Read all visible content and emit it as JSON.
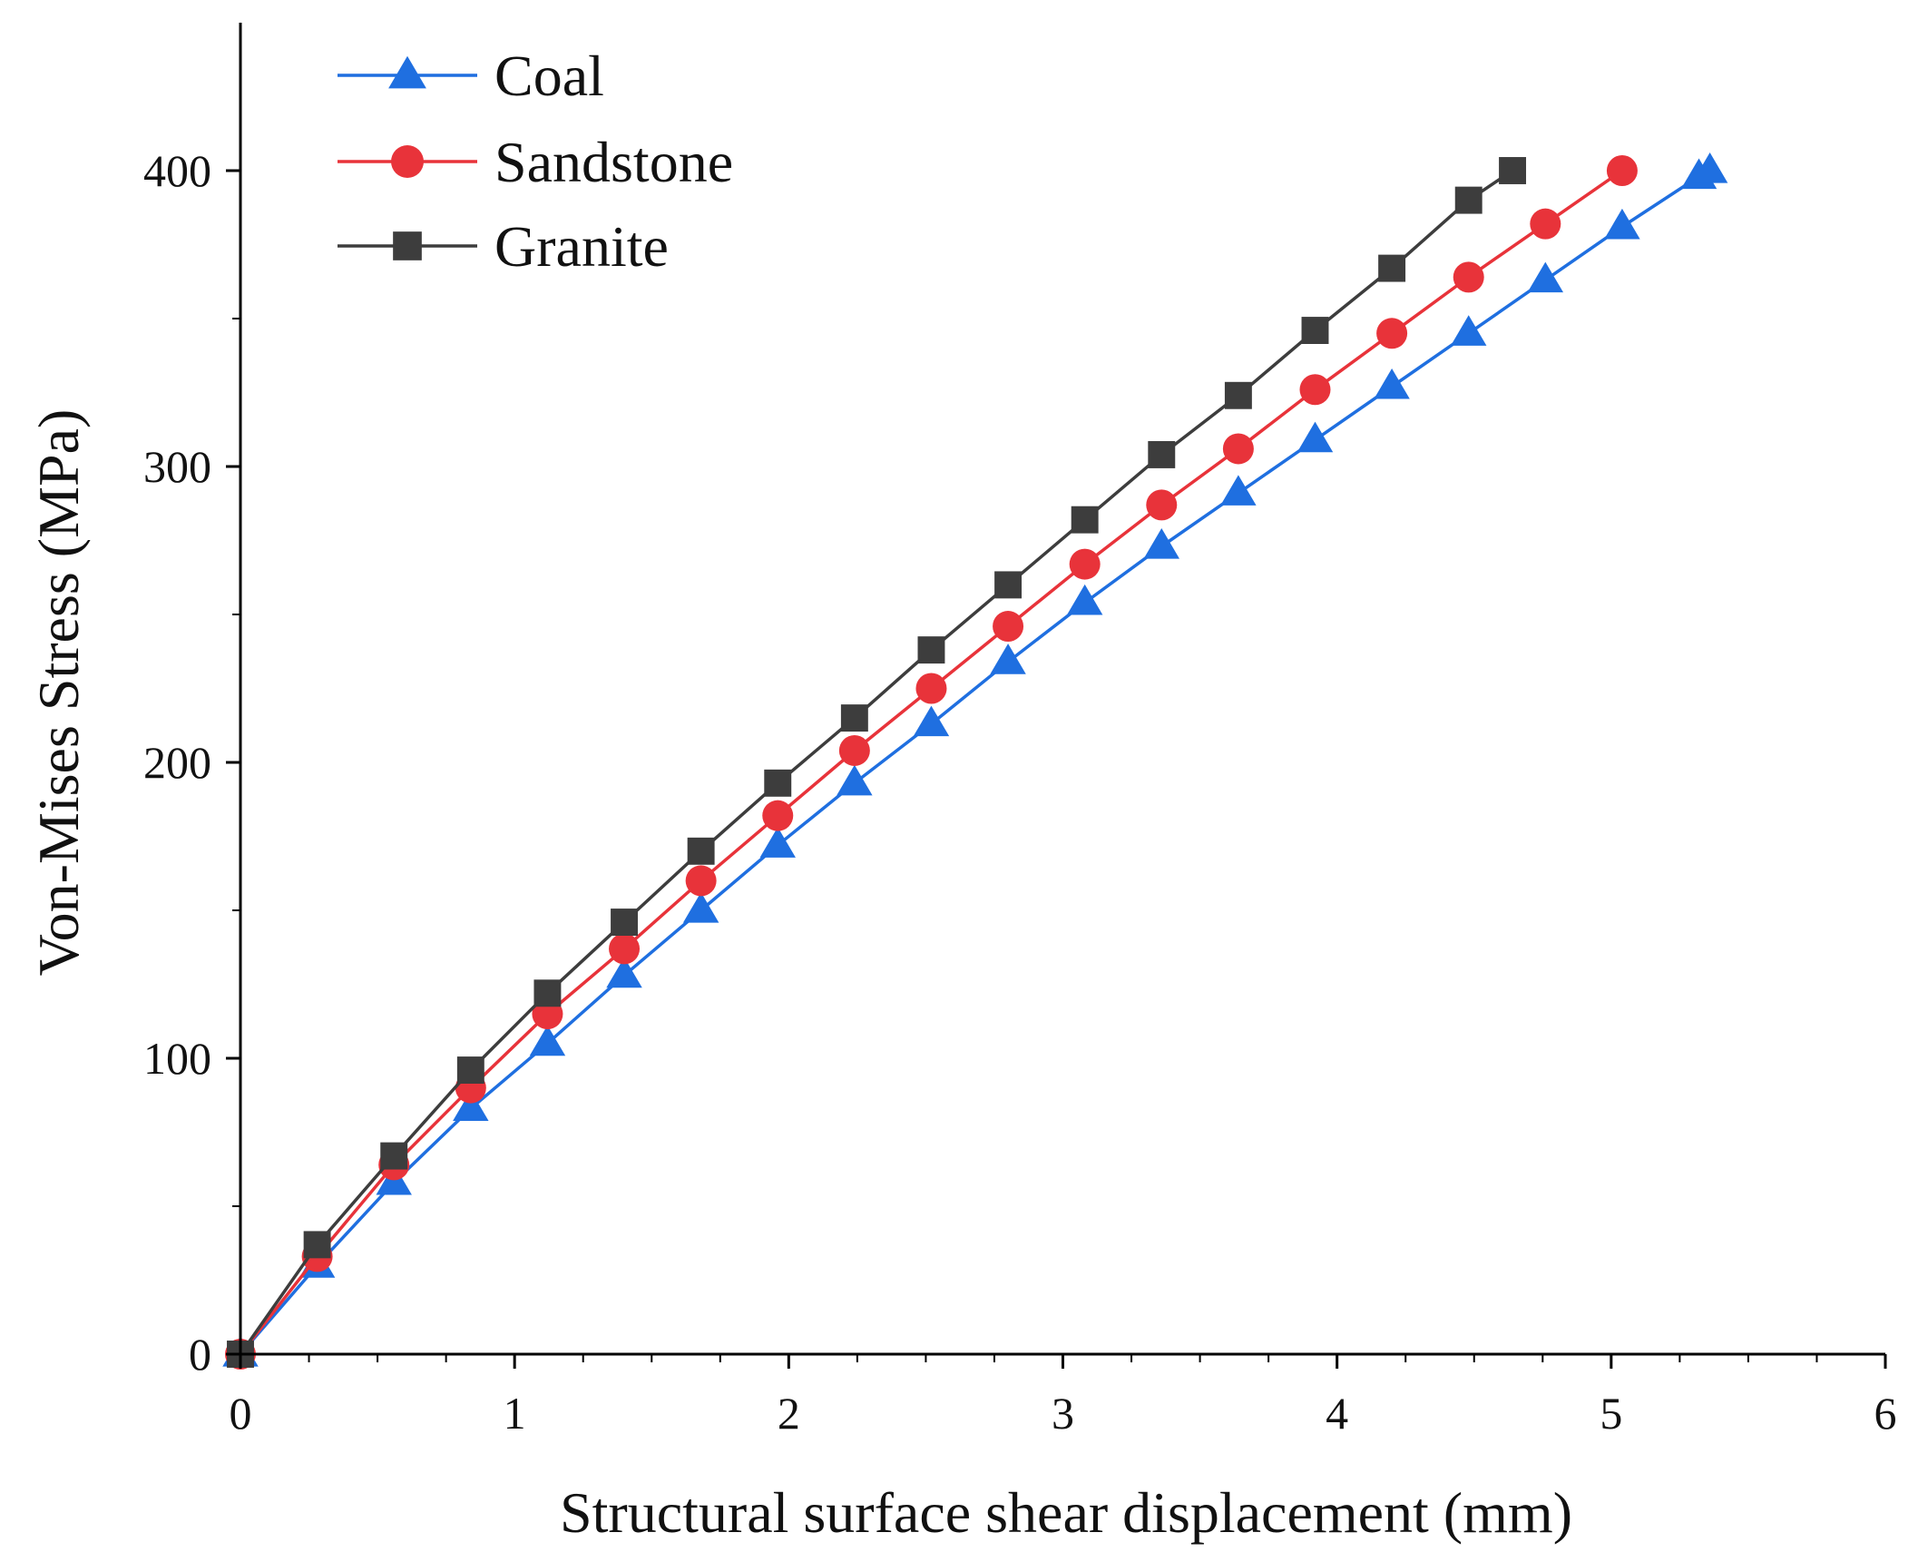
{
  "chart_data": {
    "type": "line",
    "title": "",
    "xlabel": "Structural surface shear displacement (mm)",
    "ylabel": "Von-Mises Stress (MPa)",
    "xlim": [
      0,
      6
    ],
    "ylim": [
      0,
      450
    ],
    "xticks": [
      0,
      1,
      2,
      3,
      4,
      5,
      6
    ],
    "yticks": [
      0,
      100,
      200,
      300,
      400
    ],
    "x_minor_step": 0.25,
    "grid": false,
    "legend_position": "top-left",
    "series": [
      {
        "name": "Coal",
        "color": "#1f6fe0",
        "marker": "triangle",
        "x": [
          0,
          0.28,
          0.56,
          0.84,
          1.12,
          1.4,
          1.68,
          1.96,
          2.24,
          2.52,
          2.8,
          3.08,
          3.36,
          3.64,
          3.92,
          4.2,
          4.48,
          4.76,
          5.04,
          5.32,
          5.36
        ],
        "y": [
          0,
          30,
          58,
          83,
          105,
          128,
          150,
          172,
          193,
          213,
          234,
          254,
          273,
          291,
          309,
          327,
          345,
          363,
          381,
          398,
          400
        ]
      },
      {
        "name": "Sandstone",
        "color": "#e8333a",
        "marker": "circle",
        "x": [
          0,
          0.28,
          0.56,
          0.84,
          1.12,
          1.4,
          1.68,
          1.96,
          2.24,
          2.52,
          2.8,
          3.08,
          3.36,
          3.64,
          3.92,
          4.2,
          4.48,
          4.76,
          5.04
        ],
        "y": [
          0,
          33,
          64,
          90,
          115,
          137,
          160,
          182,
          204,
          225,
          246,
          267,
          287,
          306,
          326,
          345,
          364,
          382,
          400
        ]
      },
      {
        "name": "Granite",
        "color": "#3d3d3d",
        "marker": "square",
        "x": [
          0,
          0.28,
          0.56,
          0.84,
          1.12,
          1.4,
          1.68,
          1.96,
          2.24,
          2.52,
          2.8,
          3.08,
          3.36,
          3.64,
          3.92,
          4.2,
          4.48,
          4.64
        ],
        "y": [
          0,
          37,
          67,
          96,
          122,
          146,
          170,
          193,
          215,
          238,
          260,
          282,
          304,
          324,
          346,
          367,
          390,
          400
        ]
      }
    ]
  }
}
